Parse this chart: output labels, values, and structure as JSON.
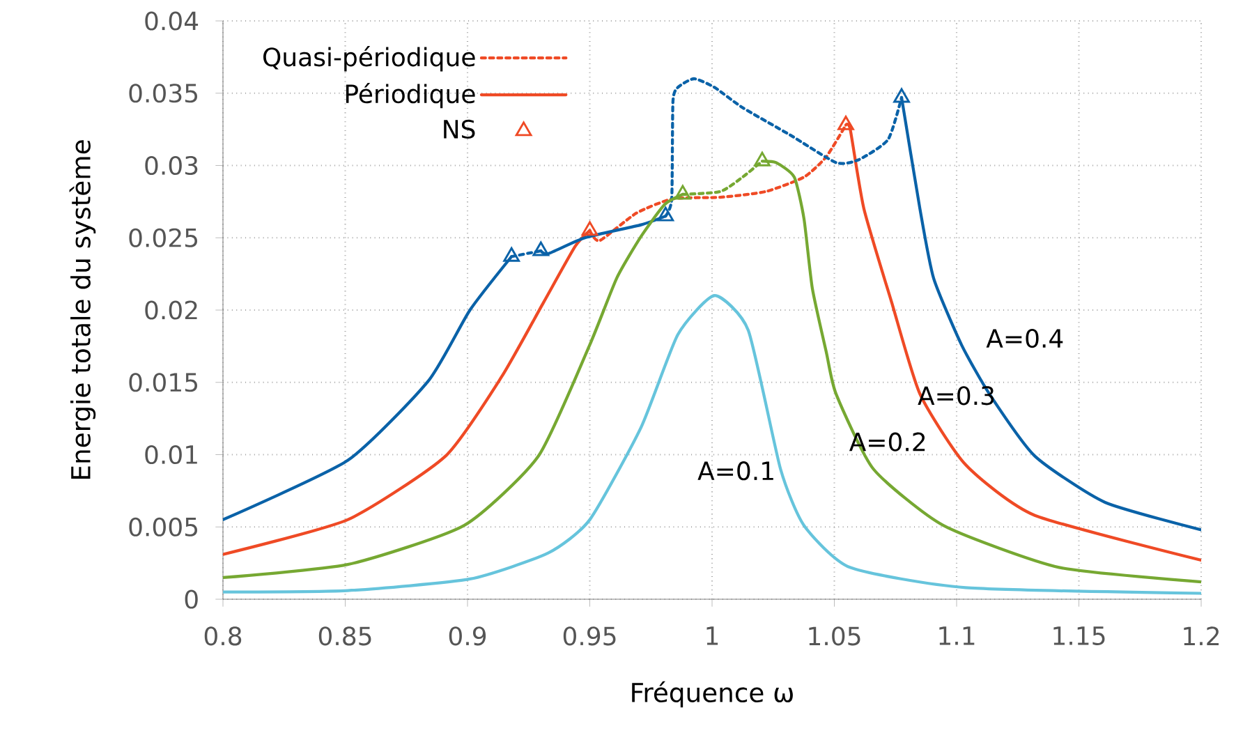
{
  "chart_data": {
    "type": "line",
    "xlabel": "Fréquence ω",
    "ylabel": "Energie totale du système",
    "xlim": [
      0.8,
      1.2
    ],
    "ylim": [
      0,
      0.04
    ],
    "xticks": [
      0.8,
      0.85,
      0.9,
      0.95,
      1,
      1.05,
      1.1,
      1.15,
      1.2
    ],
    "yticks": [
      0,
      0.005,
      0.01,
      0.015,
      0.02,
      0.025,
      0.03,
      0.035,
      0.04
    ],
    "grid": true,
    "legend": "top left",
    "series": [
      {
        "name": "Quasi-périodique",
        "color": "#ef4a25",
        "type": "line",
        "line_style": "dotted",
        "x": [
          0.95,
          0.954,
          0.969,
          0.984,
          1.0034,
          1.022,
          1.0376,
          1.0467,
          1.0547
        ],
        "values": [
          0.0255,
          0.0248,
          0.0267,
          0.0277,
          0.0278,
          0.0282,
          0.0292,
          0.0306,
          0.0328
        ]
      },
      {
        "name": "Périodique",
        "color": "#ef4a25",
        "type": "line",
        "line_style": "solid",
        "x": [
          0.8,
          0.851,
          0.891,
          0.914,
          0.931,
          0.944,
          0.95
        ],
        "values": [
          0.0031,
          0.0055,
          0.0099,
          0.0154,
          0.0205,
          0.0244,
          0.0255
        ]
      },
      {
        "name": "NS",
        "color": "#ef4a25",
        "type": "scatter",
        "marker": "triangle",
        "x": [
          0.95,
          1.0547
        ],
        "values": [
          0.0255,
          0.0328
        ]
      },
      {
        "color": "#ef4a25",
        "type": "line",
        "line_style": "solid",
        "x": [
          1.0547,
          1.0565,
          1.0621,
          1.0735,
          1.085,
          1.1037,
          1.132,
          1.2
        ],
        "values": [
          0.0328,
          0.0325,
          0.027,
          0.0205,
          0.0142,
          0.0093,
          0.0058,
          0.0027
        ]
      },
      {
        "color": "#0a62a8",
        "type": "line",
        "line_style": "solid",
        "x": [
          0.8,
          0.851,
          0.884,
          0.901,
          0.918
        ],
        "values": [
          0.0055,
          0.0096,
          0.0151,
          0.02,
          0.0237
        ]
      },
      {
        "color": "#0a62a8",
        "type": "line",
        "line_style": "dotted",
        "x": [
          0.918,
          0.93
        ],
        "values": [
          0.0237,
          0.0241
        ]
      },
      {
        "color": "#0a62a8",
        "type": "line",
        "line_style": "solid",
        "x": [
          0.93,
          0.933,
          0.948,
          0.971,
          0.981
        ],
        "values": [
          0.0241,
          0.0239,
          0.025,
          0.0259,
          0.0265
        ]
      },
      {
        "color": "#0a62a8",
        "type": "line",
        "line_style": "dotted",
        "x": [
          0.981,
          0.9835,
          0.984,
          0.986,
          0.9926,
          1.001,
          1.0125,
          1.032,
          1.0507,
          1.06,
          1.072,
          1.0775
        ],
        "values": [
          0.0265,
          0.0277,
          0.0344,
          0.0354,
          0.036,
          0.0354,
          0.034,
          0.0321,
          0.0302,
          0.0304,
          0.0318,
          0.0347
        ]
      },
      {
        "color": "#0a62a8",
        "type": "line",
        "line_style": "solid",
        "x": [
          1.0775,
          1.085,
          1.0906,
          1.102,
          1.1134,
          1.132,
          1.1607,
          1.2
        ],
        "values": [
          0.0347,
          0.027,
          0.0222,
          0.0176,
          0.0142,
          0.0099,
          0.0067,
          0.0048
        ]
      },
      {
        "color": "#0a62a8",
        "type": "scatter",
        "marker": "triangle",
        "x": [
          0.918,
          0.93,
          0.981,
          1.0775
        ],
        "values": [
          0.0237,
          0.0241,
          0.0265,
          0.0347
        ]
      },
      {
        "color": "#76a832",
        "type": "line",
        "line_style": "solid",
        "x": [
          0.8,
          0.851,
          0.8986,
          0.929,
          0.95,
          0.961,
          0.971,
          0.9806,
          0.988
        ],
        "values": [
          0.0015,
          0.0024,
          0.0051,
          0.0099,
          0.0176,
          0.0222,
          0.0251,
          0.0273,
          0.028
        ]
      },
      {
        "color": "#76a832",
        "type": "line",
        "line_style": "dotted",
        "x": [
          0.988,
          1.0034,
          1.0125,
          1.0205
        ],
        "values": [
          0.028,
          0.0282,
          0.0292,
          0.0303
        ]
      },
      {
        "color": "#76a832",
        "type": "line",
        "line_style": "solid",
        "x": [
          1.0205,
          1.0262,
          1.0336,
          1.0376,
          1.041,
          1.0467,
          1.0507,
          1.066,
          1.0946,
          1.1419,
          1.2
        ],
        "values": [
          0.0303,
          0.0302,
          0.0292,
          0.0263,
          0.0215,
          0.0171,
          0.0142,
          0.009,
          0.0051,
          0.0022,
          0.0012
        ]
      },
      {
        "color": "#76a832",
        "type": "scatter",
        "marker": "triangle",
        "x": [
          0.988,
          1.0205
        ],
        "values": [
          0.028,
          0.0303
        ]
      },
      {
        "color": "#66c4dc",
        "type": "line",
        "line_style": "solid",
        "x": [
          0.8,
          0.851,
          0.901,
          0.933,
          0.95,
          0.971,
          0.986,
          1.001,
          1.0148,
          1.028,
          1.0376,
          1.0564,
          1.1037,
          1.2
        ],
        "values": [
          0.0005,
          0.0006,
          0.0014,
          0.0032,
          0.0055,
          0.0119,
          0.0183,
          0.021,
          0.0186,
          0.009,
          0.0051,
          0.0022,
          0.0008,
          0.0004
        ]
      }
    ],
    "annotations": [
      "A=0.1",
      "A=0.2",
      "A=0.3",
      "A=0.4"
    ]
  }
}
